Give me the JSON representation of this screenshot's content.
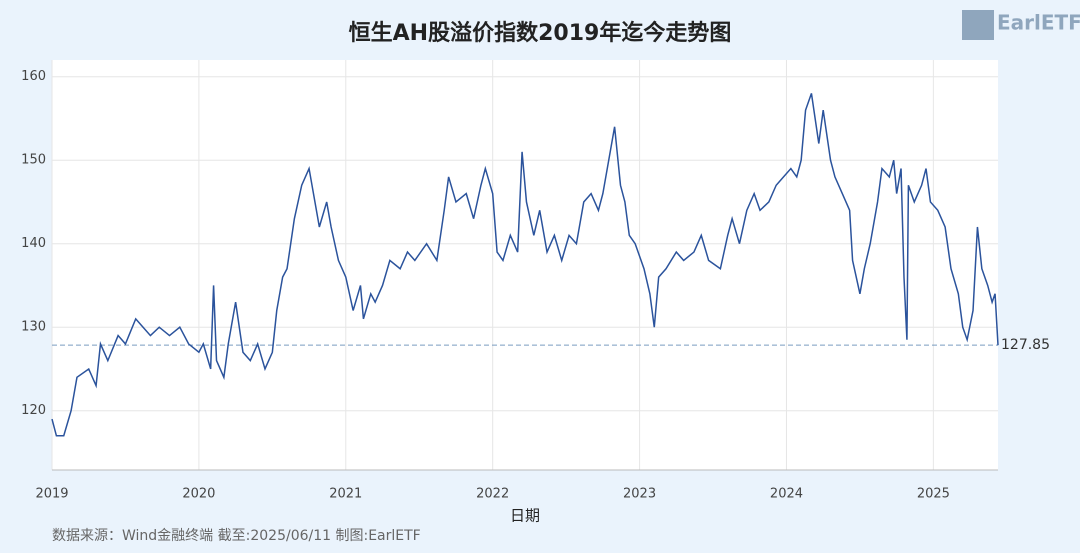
{
  "chart_data": {
    "type": "line",
    "title": "恒生AH股溢价指数2019年迄今走势图",
    "x_label": "日期",
    "source": "数据来源：Wind金融终端 截至:2025/06/11 制图:EarlETF",
    "watermark": "EarlETF",
    "xlim": [
      2019,
      2025.44
    ],
    "xticks": [
      2019,
      2020,
      2021,
      2022,
      2023,
      2024,
      2025
    ],
    "ylim": [
      112.9,
      162
    ],
    "yticks": [
      120,
      130,
      140,
      150,
      160
    ],
    "grid": true,
    "reference_line": {
      "value": 127.85,
      "label": "127.85",
      "color": "#7a9cc0"
    },
    "x": [
      2019.0,
      2019.03,
      2019.08,
      2019.13,
      2019.17,
      2019.25,
      2019.3,
      2019.33,
      2019.38,
      2019.45,
      2019.5,
      2019.57,
      2019.62,
      2019.67,
      2019.73,
      2019.8,
      2019.87,
      2019.93,
      2020.0,
      2020.03,
      2020.08,
      2020.1,
      2020.12,
      2020.17,
      2020.2,
      2020.25,
      2020.3,
      2020.35,
      2020.4,
      2020.45,
      2020.5,
      2020.53,
      2020.57,
      2020.6,
      2020.65,
      2020.7,
      2020.75,
      2020.78,
      2020.82,
      2020.87,
      2020.9,
      2020.95,
      2021.0,
      2021.05,
      2021.1,
      2021.12,
      2021.17,
      2021.2,
      2021.25,
      2021.3,
      2021.37,
      2021.42,
      2021.47,
      2021.55,
      2021.62,
      2021.67,
      2021.7,
      2021.75,
      2021.82,
      2021.87,
      2021.92,
      2021.95,
      2022.0,
      2022.03,
      2022.07,
      2022.12,
      2022.17,
      2022.2,
      2022.23,
      2022.28,
      2022.32,
      2022.37,
      2022.42,
      2022.47,
      2022.52,
      2022.57,
      2022.62,
      2022.67,
      2022.72,
      2022.75,
      2022.8,
      2022.83,
      2022.87,
      2022.9,
      2022.93,
      2022.97,
      2023.03,
      2023.07,
      2023.1,
      2023.13,
      2023.18,
      2023.25,
      2023.3,
      2023.37,
      2023.42,
      2023.47,
      2023.55,
      2023.6,
      2023.63,
      2023.68,
      2023.73,
      2023.78,
      2023.82,
      2023.88,
      2023.93,
      2023.98,
      2024.03,
      2024.07,
      2024.1,
      2024.13,
      2024.17,
      2024.22,
      2024.25,
      2024.3,
      2024.33,
      2024.38,
      2024.43,
      2024.45,
      2024.5,
      2024.53,
      2024.57,
      2024.62,
      2024.65,
      2024.7,
      2024.73,
      2024.75,
      2024.78,
      2024.8,
      2024.82,
      2024.83,
      2024.87,
      2024.92,
      2024.95,
      2024.98,
      2025.03,
      2025.08,
      2025.12,
      2025.17,
      2025.2,
      2025.23,
      2025.27,
      2025.3,
      2025.33,
      2025.37,
      2025.4,
      2025.42,
      2025.44
    ],
    "series": [
      {
        "name": "恒生AH股溢价指数",
        "color": "#2b539c",
        "values": [
          119,
          117,
          117,
          120,
          124,
          125,
          123,
          128,
          126,
          129,
          128,
          131,
          130,
          129,
          130,
          129,
          130,
          128,
          127,
          128,
          125,
          135,
          126,
          124,
          128,
          133,
          127,
          126,
          128,
          125,
          127,
          132,
          136,
          137,
          143,
          147,
          149,
          146,
          142,
          145,
          142,
          138,
          136,
          132,
          135,
          131,
          134,
          133,
          135,
          138,
          137,
          139,
          138,
          140,
          138,
          144,
          148,
          145,
          146,
          143,
          147,
          149,
          146,
          139,
          138,
          141,
          139,
          151,
          145,
          141,
          144,
          139,
          141,
          138,
          141,
          140,
          145,
          146,
          144,
          146,
          151,
          154,
          147,
          145,
          141,
          140,
          137,
          134,
          130,
          136,
          137,
          139,
          138,
          139,
          141,
          138,
          137,
          141,
          143,
          140,
          144,
          146,
          144,
          145,
          147,
          148,
          149,
          148,
          150,
          156,
          158,
          152,
          156,
          150,
          148,
          146,
          144,
          138,
          134,
          137,
          140,
          145,
          149,
          148,
          150,
          146,
          149,
          136,
          128.5,
          147,
          145,
          147,
          149,
          145,
          144,
          142,
          137,
          134,
          130,
          128.5,
          132,
          142,
          137,
          135,
          133,
          134,
          127.85
        ]
      }
    ]
  }
}
